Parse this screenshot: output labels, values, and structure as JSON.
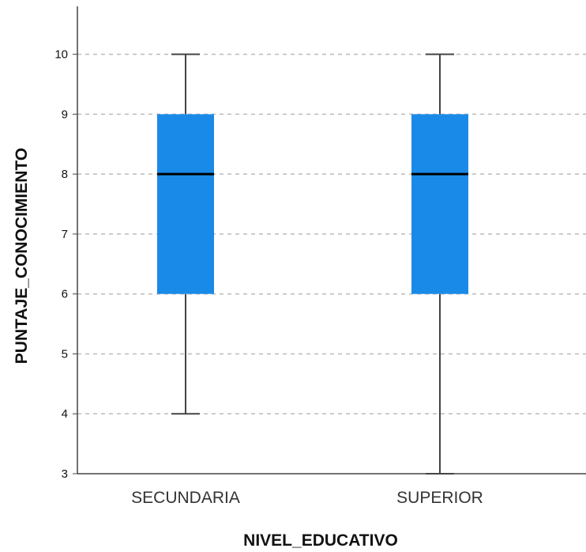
{
  "chart_data": {
    "type": "box",
    "title": "",
    "xlabel": "NIVEL_EDUCATIVO",
    "ylabel": "PUNTAJE_CONOCIMIENTO",
    "ylim": [
      3,
      10.8
    ],
    "yticks": [
      3,
      4,
      5,
      6,
      7,
      8,
      9,
      10
    ],
    "grid": true,
    "categories": [
      "SECUNDARIA",
      "SUPERIOR"
    ],
    "boxes": [
      {
        "category": "SECUNDARIA",
        "min": 4,
        "q1": 6,
        "median": 8,
        "q3": 9,
        "max": 10
      },
      {
        "category": "SUPERIOR",
        "min": 3,
        "q1": 6,
        "median": 8,
        "q3": 9,
        "max": 10
      }
    ],
    "colors": {
      "box": "#1a8ae8",
      "median": "#000000",
      "whisker": "#444444",
      "grid": "#bbbbbb"
    }
  }
}
